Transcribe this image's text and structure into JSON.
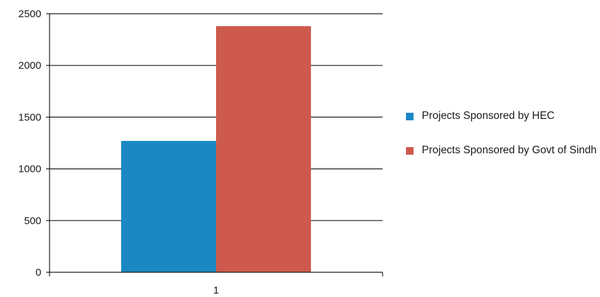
{
  "chart_data": {
    "type": "bar",
    "categories": [
      "1"
    ],
    "series": [
      {
        "name": "Projects Sponsored by HEC",
        "values": [
          1270
        ],
        "color": "#1b88c4"
      },
      {
        "name": "Projects Sponsored by Govt of Sindh",
        "values": [
          2380
        ],
        "color": "#cd5a4d"
      }
    ],
    "ylim": [
      0,
      2500
    ],
    "yticks": [
      0,
      500,
      1000,
      1500,
      2000,
      2500
    ],
    "grid": true,
    "legend_position": "right"
  }
}
